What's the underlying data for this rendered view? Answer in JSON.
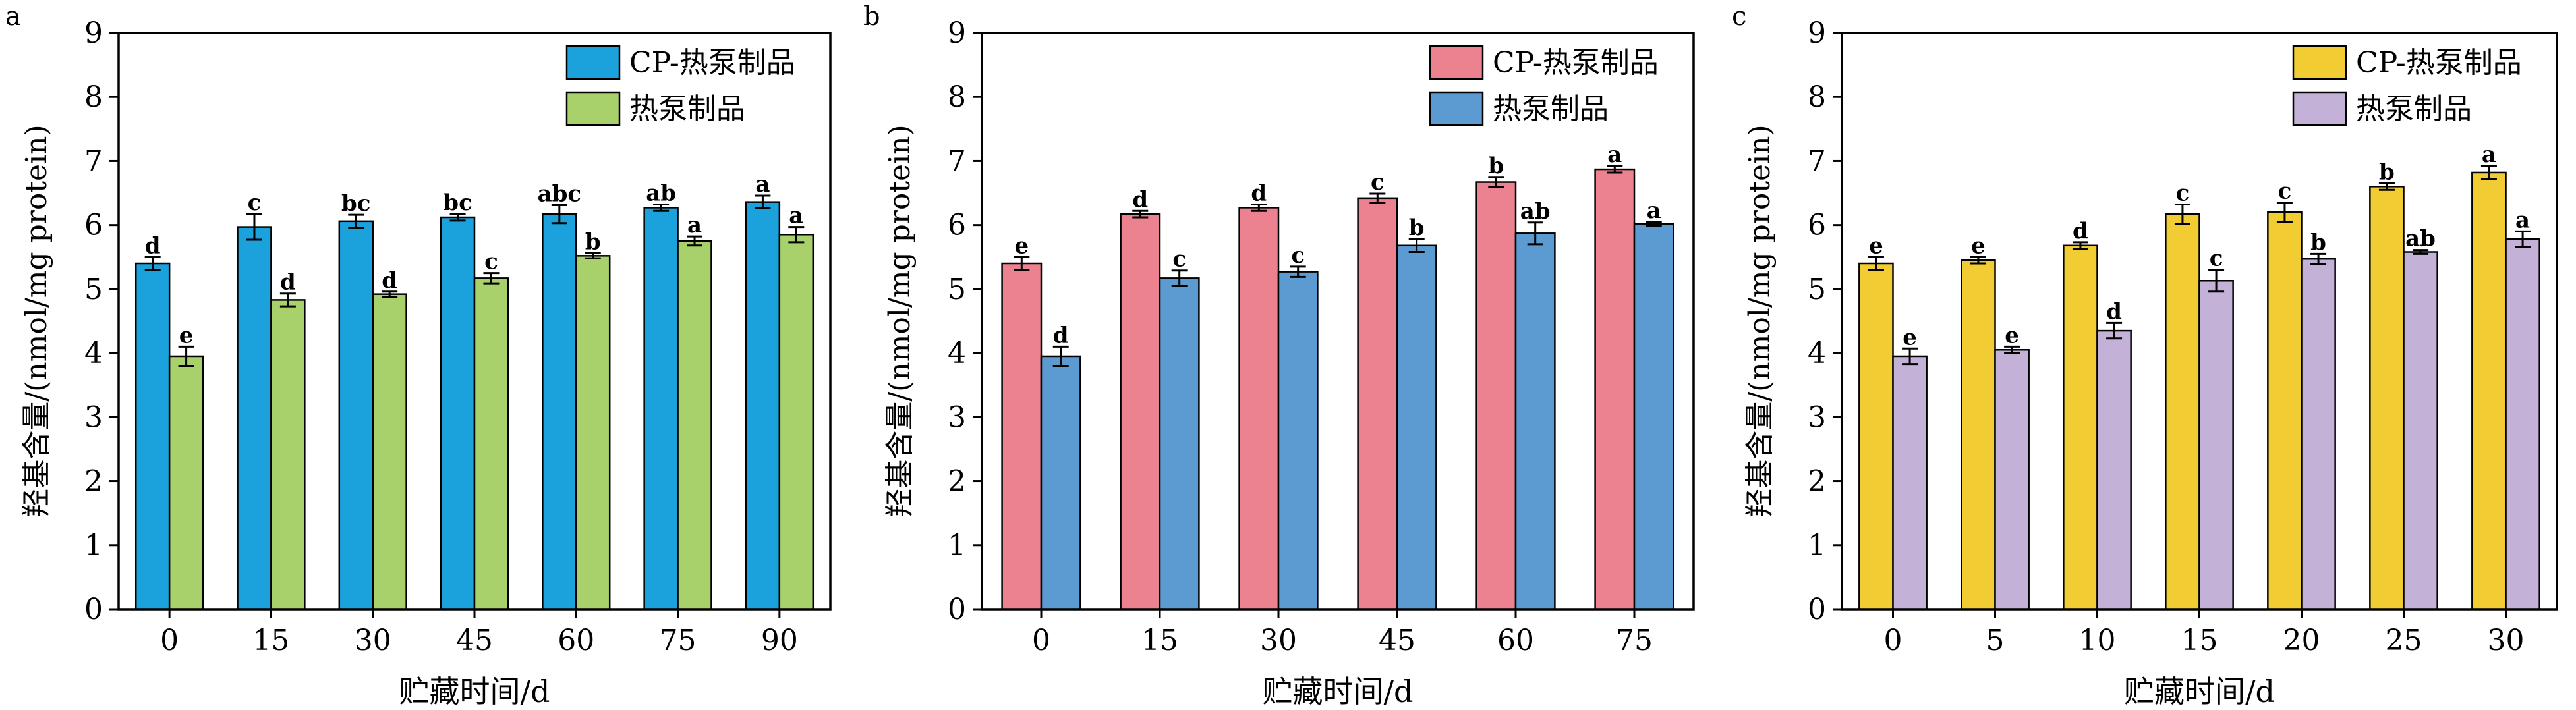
{
  "figure": {
    "panels": [
      "a",
      "b",
      "c"
    ]
  },
  "chart_data": [
    {
      "panel_label": "a",
      "type": "bar",
      "ylabel": "羟基含量/(nmol/mg protein)",
      "xlabel": "贮藏时间/d",
      "ylim": [
        0,
        9
      ],
      "yticks": [
        "0",
        "1",
        "2",
        "3",
        "4",
        "5",
        "6",
        "7",
        "8",
        "9"
      ],
      "categories": [
        "0",
        "15",
        "30",
        "45",
        "60",
        "75",
        "90"
      ],
      "legend_position": "top-right",
      "series": [
        {
          "name": "CP-热泵制品",
          "color": "#1ba1dc",
          "values": [
            5.4,
            5.97,
            6.06,
            6.12,
            6.17,
            6.27,
            6.36
          ],
          "errors": [
            0.1,
            0.2,
            0.1,
            0.05,
            0.14,
            0.05,
            0.1
          ],
          "letters": [
            "d",
            "c",
            "bc",
            "bc",
            "abc",
            "ab",
            "a"
          ]
        },
        {
          "name": "热泵制品",
          "color": "#a8d16b",
          "values": [
            3.95,
            4.83,
            4.92,
            5.17,
            5.52,
            5.75,
            5.85
          ],
          "errors": [
            0.15,
            0.1,
            0.04,
            0.08,
            0.04,
            0.07,
            0.12
          ],
          "letters": [
            "e",
            "d",
            "d",
            "c",
            "b",
            "a",
            "a"
          ]
        }
      ]
    },
    {
      "panel_label": "b",
      "type": "bar",
      "ylabel": "羟基含量/(nmol/mg protein)",
      "xlabel": "贮藏时间/d",
      "ylim": [
        0,
        9
      ],
      "yticks": [
        "0",
        "1",
        "2",
        "3",
        "4",
        "5",
        "6",
        "7",
        "8",
        "9"
      ],
      "categories": [
        "0",
        "15",
        "30",
        "45",
        "60",
        "75"
      ],
      "legend_position": "top-right",
      "series": [
        {
          "name": "CP-热泵制品",
          "color": "#ec8290",
          "values": [
            5.4,
            6.17,
            6.27,
            6.42,
            6.67,
            6.87
          ],
          "errors": [
            0.1,
            0.05,
            0.05,
            0.07,
            0.08,
            0.05
          ],
          "letters": [
            "e",
            "d",
            "d",
            "c",
            "b",
            "a"
          ]
        },
        {
          "name": "热泵制品",
          "color": "#5b9bd2",
          "values": [
            3.95,
            5.17,
            5.27,
            5.68,
            5.87,
            6.02
          ],
          "errors": [
            0.15,
            0.12,
            0.08,
            0.1,
            0.17,
            0.03
          ],
          "letters": [
            "d",
            "c",
            "c",
            "b",
            "ab",
            "a"
          ]
        }
      ]
    },
    {
      "panel_label": "c",
      "type": "bar",
      "ylabel": "羟基含量/(nmol/mg protein)",
      "xlabel": "贮藏时间/d",
      "ylim": [
        0,
        9
      ],
      "yticks": [
        "0",
        "1",
        "2",
        "3",
        "4",
        "5",
        "6",
        "7",
        "8",
        "9"
      ],
      "categories": [
        "0",
        "5",
        "10",
        "15",
        "20",
        "25",
        "30"
      ],
      "legend_position": "top-right",
      "series": [
        {
          "name": "CP-热泵制品",
          "color": "#f2cc33",
          "values": [
            5.4,
            5.45,
            5.68,
            6.17,
            6.2,
            6.6,
            6.82
          ],
          "errors": [
            0.1,
            0.05,
            0.05,
            0.15,
            0.15,
            0.05,
            0.1
          ],
          "letters": [
            "e",
            "e",
            "d",
            "c",
            "c",
            "b",
            "a"
          ]
        },
        {
          "name": "热泵制品",
          "color": "#c3b1d8",
          "values": [
            3.95,
            4.05,
            4.35,
            5.13,
            5.47,
            5.58,
            5.78
          ],
          "errors": [
            0.12,
            0.05,
            0.12,
            0.17,
            0.08,
            0.03,
            0.12
          ],
          "letters": [
            "e",
            "e",
            "d",
            "c",
            "b",
            "ab",
            "a"
          ]
        }
      ]
    }
  ]
}
